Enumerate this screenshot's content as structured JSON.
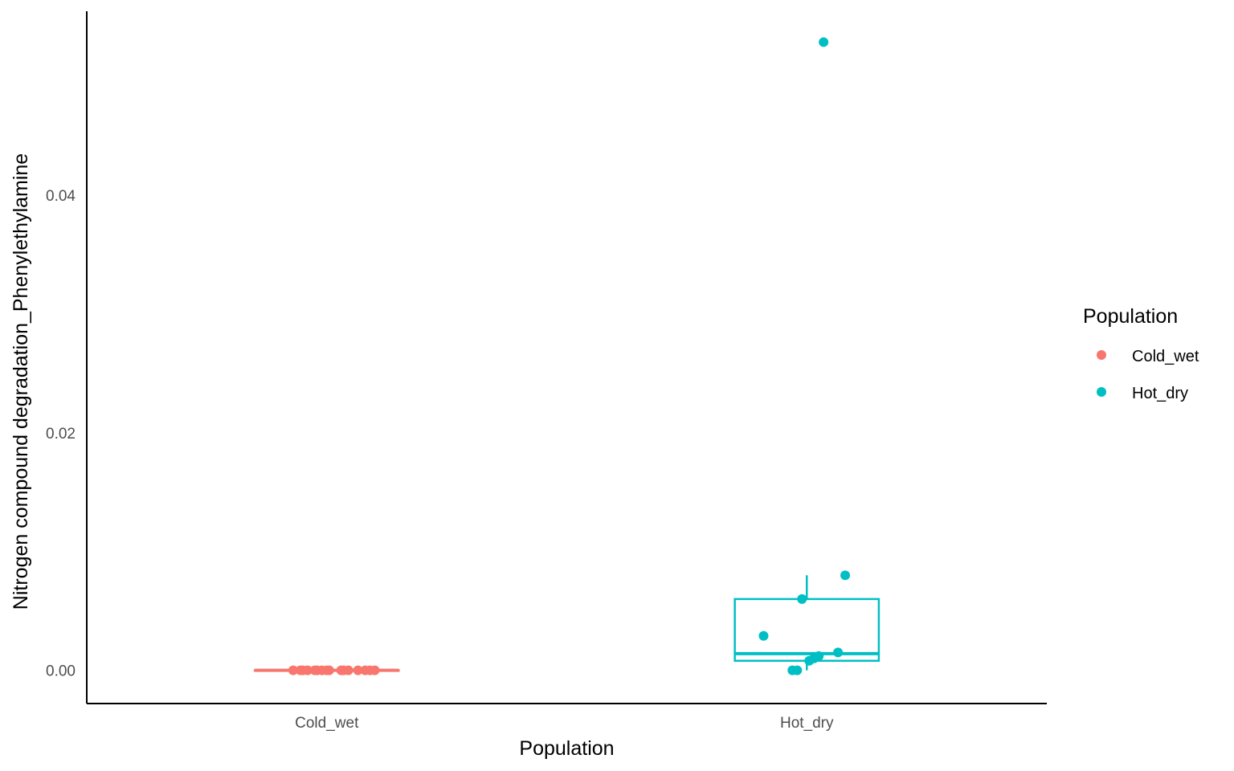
{
  "chart_data": {
    "type": "boxplot",
    "title": "",
    "xlabel": "Population",
    "ylabel": "Nitrogen compound degradation_Phenylethylamine",
    "categories": [
      "Cold_wet",
      "Hot_dry"
    ],
    "ylim": [
      -0.0028,
      0.0555
    ],
    "yticks": [
      0.0,
      0.02,
      0.04
    ],
    "ytick_labels": [
      "0.00",
      "0.02",
      "0.04"
    ],
    "grid": false,
    "legend": {
      "title": "Population",
      "position": "right",
      "entries": [
        {
          "label": "Cold_wet",
          "color": "#F8766D"
        },
        {
          "label": "Hot_dry",
          "color": "#00BFC4"
        }
      ]
    },
    "series": [
      {
        "category": "Cold_wet",
        "color": "#F8766D",
        "box": {
          "whisker_low": 0.0,
          "q1": 0.0,
          "median": 0.0,
          "q3": 0.0,
          "whisker_high": 0.0
        },
        "points": [
          {
            "x_offset": -0.07,
            "y": 0.0
          },
          {
            "x_offset": -0.055,
            "y": 0.0
          },
          {
            "x_offset": -0.05,
            "y": 0.0
          },
          {
            "x_offset": -0.04,
            "y": 0.0
          },
          {
            "x_offset": -0.025,
            "y": 0.0
          },
          {
            "x_offset": -0.02,
            "y": 0.0
          },
          {
            "x_offset": -0.01,
            "y": 0.0
          },
          {
            "x_offset": 0.0,
            "y": 0.0
          },
          {
            "x_offset": 0.005,
            "y": 0.0
          },
          {
            "x_offset": 0.03,
            "y": 0.0
          },
          {
            "x_offset": 0.035,
            "y": 0.0
          },
          {
            "x_offset": 0.045,
            "y": 0.0
          },
          {
            "x_offset": 0.065,
            "y": 0.0
          },
          {
            "x_offset": 0.08,
            "y": 0.0
          },
          {
            "x_offset": 0.09,
            "y": 0.0
          },
          {
            "x_offset": 0.1,
            "y": 0.0
          }
        ]
      },
      {
        "category": "Hot_dry",
        "color": "#00BFC4",
        "box": {
          "whisker_low": 0.0,
          "q1": 0.0008,
          "median": 0.0014,
          "q3": 0.006,
          "whisker_high": 0.008
        },
        "points": [
          {
            "x_offset": 0.035,
            "y": 0.0529
          },
          {
            "x_offset": 0.08,
            "y": 0.008
          },
          {
            "x_offset": -0.01,
            "y": 0.006
          },
          {
            "x_offset": -0.09,
            "y": 0.0029
          },
          {
            "x_offset": 0.065,
            "y": 0.0015
          },
          {
            "x_offset": 0.025,
            "y": 0.0012
          },
          {
            "x_offset": 0.015,
            "y": 0.001
          },
          {
            "x_offset": 0.005,
            "y": 0.0008
          },
          {
            "x_offset": -0.03,
            "y": 0.0
          },
          {
            "x_offset": -0.02,
            "y": 0.0
          }
        ]
      }
    ]
  }
}
